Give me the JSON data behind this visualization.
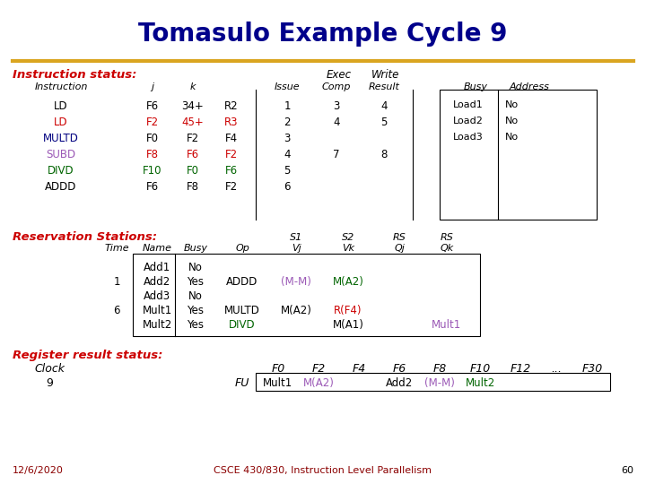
{
  "title": "Tomasulo Example Cycle 9",
  "title_color": "#00008B",
  "title_fontsize": 20,
  "bg_color": "#FFFFFF",
  "footer_date": "12/6/2020",
  "footer_course": "CSCE 430/830, Instruction Level Parallelism",
  "footer_page": "60",
  "footer_color": "#8B0000",
  "instructions": [
    {
      "name": "LD",
      "name_color": "#000000",
      "j": "F6",
      "j_color": "#000000",
      "k": "34+",
      "k_color": "#000000",
      "reg": "R2",
      "reg_color": "#000000",
      "issue": "1",
      "exec": "3",
      "write": "4",
      "load": "Load1",
      "busy": "No"
    },
    {
      "name": "LD",
      "name_color": "#CC0000",
      "j": "F2",
      "j_color": "#CC0000",
      "k": "45+",
      "k_color": "#CC0000",
      "reg": "R3",
      "reg_color": "#CC0000",
      "issue": "2",
      "exec": "4",
      "write": "5",
      "load": "Load2",
      "busy": "No"
    },
    {
      "name": "MULTD",
      "name_color": "#000080",
      "j": "F0",
      "j_color": "#000000",
      "k": "F2",
      "k_color": "#000000",
      "reg": "F4",
      "reg_color": "#000000",
      "issue": "3",
      "exec": "",
      "write": "",
      "load": "Load3",
      "busy": "No"
    },
    {
      "name": "SUBD",
      "name_color": "#9B59B6",
      "j": "F8",
      "j_color": "#CC0000",
      "k": "F6",
      "k_color": "#CC0000",
      "reg": "F2",
      "reg_color": "#CC0000",
      "issue": "4",
      "exec": "7",
      "write": "8",
      "load": "",
      "busy": ""
    },
    {
      "name": "DIVD",
      "name_color": "#006400",
      "j": "F10",
      "j_color": "#006400",
      "k": "F0",
      "k_color": "#006400",
      "reg": "F6",
      "reg_color": "#006400",
      "issue": "5",
      "exec": "",
      "write": "",
      "load": "",
      "busy": ""
    },
    {
      "name": "ADDD",
      "name_color": "#000000",
      "j": "F6",
      "j_color": "#000000",
      "k": "F8",
      "k_color": "#000000",
      "reg": "F2",
      "reg_color": "#000000",
      "issue": "6",
      "exec": "",
      "write": "",
      "load": "",
      "busy": ""
    }
  ],
  "rs_rows": [
    {
      "time": "",
      "name": "Add1",
      "busy": "No",
      "op": "",
      "op_color": "#000000",
      "vj": "",
      "vj_color": "#000000",
      "vk": "",
      "vk_color": "#000000",
      "qj": "",
      "qj_color": "#000000",
      "qk": "",
      "qk_color": "#000000"
    },
    {
      "time": "1",
      "name": "Add2",
      "busy": "Yes",
      "op": "ADDD",
      "op_color": "#000000",
      "vj": "(M-M)",
      "vj_color": "#9B59B6",
      "vk": "M(A2)",
      "vk_color": "#006400",
      "qj": "",
      "qj_color": "#000000",
      "qk": "",
      "qk_color": "#000000"
    },
    {
      "time": "",
      "name": "Add3",
      "busy": "No",
      "op": "",
      "op_color": "#000000",
      "vj": "",
      "vj_color": "#000000",
      "vk": "",
      "vk_color": "#000000",
      "qj": "",
      "qj_color": "#000000",
      "qk": "",
      "qk_color": "#000000"
    },
    {
      "time": "6",
      "name": "Mult1",
      "busy": "Yes",
      "op": "MULTD",
      "op_color": "#000000",
      "vj": "M(A2)",
      "vj_color": "#000000",
      "vk": "R(F4)",
      "vk_color": "#CC0000",
      "qj": "",
      "qj_color": "#000000",
      "qk": "",
      "qk_color": "#000000"
    },
    {
      "time": "",
      "name": "Mult2",
      "busy": "Yes",
      "op": "DIVD",
      "op_color": "#006400",
      "vj": "",
      "vj_color": "#000000",
      "vk": "M(A1)",
      "vk_color": "#000000",
      "qj": "",
      "qj_color": "#000000",
      "qk": "Mult1",
      "qk_color": "#9B59B6"
    }
  ],
  "reg_vals": [
    {
      "reg": "F0",
      "val": "Mult1",
      "color": "#000000"
    },
    {
      "reg": "F2",
      "val": "M(A2)",
      "color": "#9B59B6"
    },
    {
      "reg": "F4",
      "val": "",
      "color": "#000000"
    },
    {
      "reg": "F6",
      "val": "Add2",
      "color": "#000000"
    },
    {
      "reg": "F8",
      "val": "(M-M)",
      "color": "#9B59B6"
    },
    {
      "reg": "F10",
      "val": "Mult2",
      "color": "#006400"
    },
    {
      "reg": "F12",
      "val": "",
      "color": "#000000"
    },
    {
      "reg": "...",
      "val": "",
      "color": "#000000"
    },
    {
      "reg": "F30",
      "val": "",
      "color": "#000000"
    }
  ]
}
